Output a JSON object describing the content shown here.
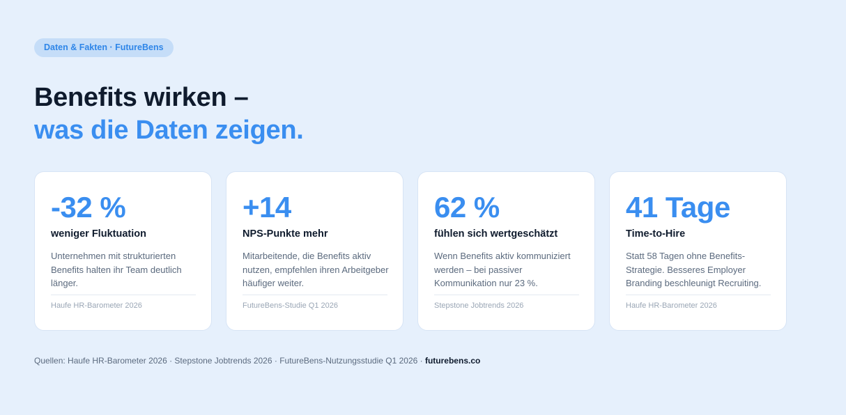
{
  "badge": "Daten & Fakten · FutureBens",
  "headline": {
    "line1": "Benefits wirken –",
    "line2": "was die Daten zeigen."
  },
  "cards": [
    {
      "stat": "-32 %",
      "label": "weniger Fluktuation",
      "description": "Unternehmen mit strukturierten Benefits halten ihr Team deutlich länger.",
      "source": "Haufe HR-Barometer 2026"
    },
    {
      "stat": "+14",
      "label": "NPS-Punkte mehr",
      "description": "Mitarbeitende, die Benefits aktiv nutzen, empfehlen ihren Arbeitgeber häufiger weiter.",
      "source": "FutureBens-Studie Q1 2026"
    },
    {
      "stat": "62 %",
      "label": "fühlen sich wertgeschätzt",
      "description": "Wenn Benefits aktiv kommuniziert werden – bei passiver Kommunikation nur 23 %.",
      "source": "Stepstone Jobtrends 2026"
    },
    {
      "stat": "41 Tage",
      "label": "Time-to-Hire",
      "description": "Statt 58 Tagen ohne Benefits-Strategie. Besseres Employer Branding beschleunigt Recruiting.",
      "source": "Haufe HR-Barometer 2026"
    }
  ],
  "footer": {
    "sources": "Quellen: Haufe HR-Barometer 2026 · Stepstone Jobtrends 2026 · FutureBens-Nutzungsstudie Q1 2026 · ",
    "brand": "futurebens.co"
  },
  "colors": {
    "background": "#e6f0fc",
    "accent": "#3a8ef0",
    "text": "#0f1b2d",
    "badge_bg": "#c5ddf8"
  }
}
